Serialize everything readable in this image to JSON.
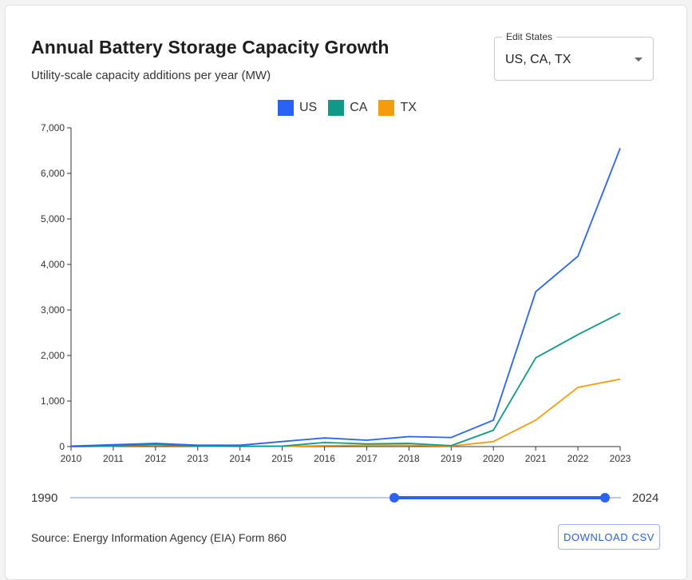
{
  "header": {
    "title": "Annual Battery Storage Capacity Growth",
    "subtitle": "Utility-scale capacity additions per year (MW)"
  },
  "state_select": {
    "label": "Edit States",
    "value": "US, CA, TX"
  },
  "year_range": {
    "min_label": "1990",
    "max_label": "2024",
    "min": 1990,
    "max": 2024,
    "selected": [
      2010,
      2023
    ]
  },
  "footer": {
    "source": "Source: Energy Information Agency (EIA) Form 860",
    "download_label": "DOWNLOAD CSV"
  },
  "colors": {
    "US": "#2962f5",
    "CA": "#0e9a87",
    "TX": "#f59c0e",
    "accent": "#2962f5"
  },
  "chart_data": {
    "type": "line",
    "title": "Annual Battery Storage Capacity Growth",
    "subtitle": "Utility-scale capacity additions per year (MW)",
    "xlabel": "",
    "ylabel": "",
    "x": [
      2010,
      2011,
      2012,
      2013,
      2014,
      2015,
      2016,
      2017,
      2018,
      2019,
      2020,
      2021,
      2022,
      2023
    ],
    "x_ticks": [
      "2010",
      "2011",
      "2012",
      "2013",
      "2014",
      "2015",
      "2016",
      "2017",
      "2018",
      "2019",
      "2020",
      "2021",
      "2022",
      "2023"
    ],
    "y_ticks": [
      "0",
      "1,000",
      "2,000",
      "3,000",
      "4,000",
      "5,000",
      "6,000",
      "7,000"
    ],
    "ylim": [
      0,
      7000
    ],
    "xlim": [
      2010,
      2023
    ],
    "grid": false,
    "legend": "top-center",
    "series": [
      {
        "name": "US",
        "values": [
          10,
          40,
          70,
          30,
          30,
          110,
          190,
          140,
          220,
          200,
          580,
          3400,
          4180,
          6550
        ]
      },
      {
        "name": "CA",
        "values": [
          0,
          10,
          50,
          10,
          5,
          10,
          90,
          60,
          70,
          20,
          360,
          1950,
          2460,
          2930
        ]
      },
      {
        "name": "TX",
        "values": [
          0,
          10,
          30,
          10,
          5,
          5,
          20,
          30,
          30,
          10,
          110,
          580,
          1300,
          1480
        ]
      }
    ]
  }
}
